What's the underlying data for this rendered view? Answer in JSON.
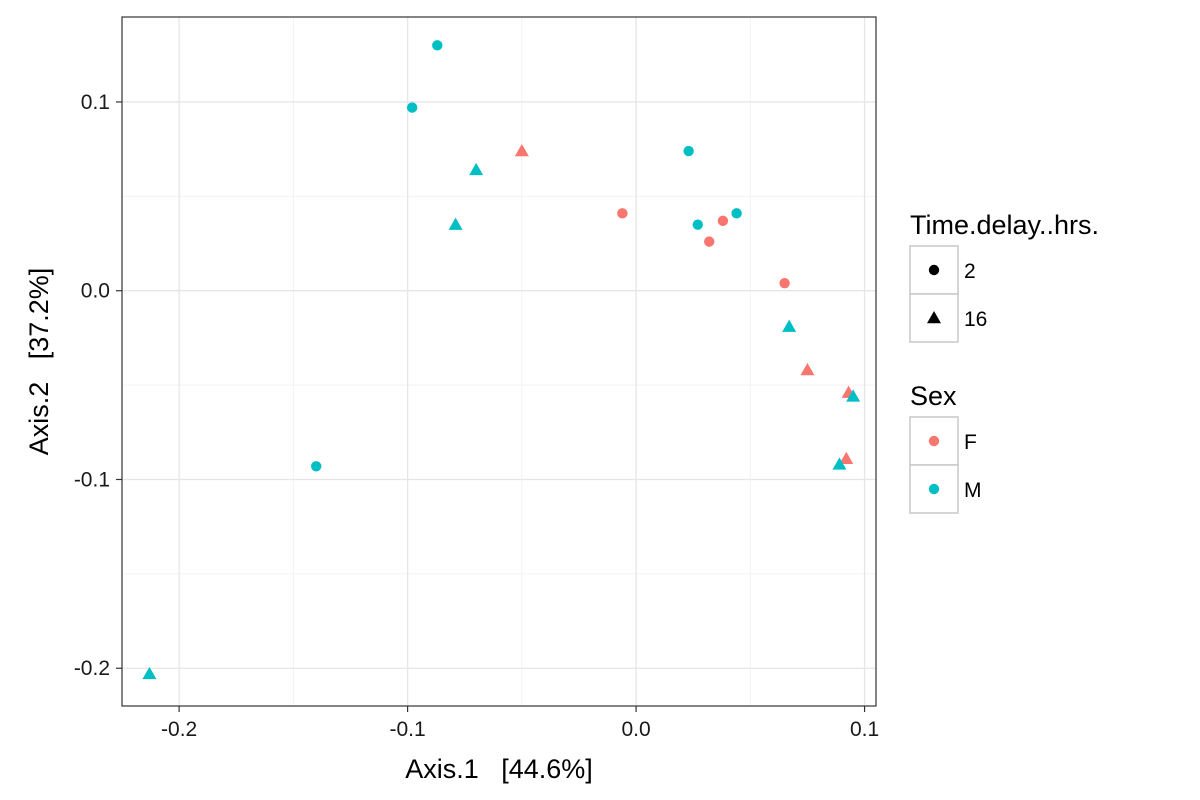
{
  "chart_data": {
    "type": "scatter",
    "xlabel": "Axis.1   [44.6%]",
    "ylabel": "Axis.2   [37.2%]",
    "xlim": [
      -0.225,
      0.105
    ],
    "ylim": [
      -0.22,
      0.145
    ],
    "x_ticks": [
      -0.2,
      -0.1,
      0.0,
      0.1
    ],
    "x_tick_labels": [
      "-0.2",
      "-0.1",
      "0.0",
      "0.1"
    ],
    "y_ticks": [
      -0.2,
      -0.1,
      0.0,
      0.1
    ],
    "y_tick_labels": [
      "-0.2",
      "-0.1",
      "0.0",
      "0.1"
    ],
    "grid": true,
    "legend_position": "right",
    "shape_legend": {
      "title": "Time.delay..hrs.",
      "entries": [
        {
          "label": "2",
          "shape": "circle"
        },
        {
          "label": "16",
          "shape": "triangle"
        }
      ]
    },
    "color_legend": {
      "title": "Sex",
      "entries": [
        {
          "label": "F",
          "color": "#F8766D"
        },
        {
          "label": "M",
          "color": "#00BFC4"
        }
      ]
    },
    "points": [
      {
        "x": -0.087,
        "y": 0.13,
        "sex": "M",
        "time": "2"
      },
      {
        "x": -0.098,
        "y": 0.097,
        "sex": "M",
        "time": "2"
      },
      {
        "x": -0.05,
        "y": 0.074,
        "sex": "F",
        "time": "16"
      },
      {
        "x": -0.07,
        "y": 0.064,
        "sex": "M",
        "time": "16"
      },
      {
        "x": -0.079,
        "y": 0.035,
        "sex": "M",
        "time": "16"
      },
      {
        "x": 0.023,
        "y": 0.074,
        "sex": "M",
        "time": "2"
      },
      {
        "x": -0.006,
        "y": 0.041,
        "sex": "F",
        "time": "2"
      },
      {
        "x": 0.044,
        "y": 0.041,
        "sex": "M",
        "time": "2"
      },
      {
        "x": 0.038,
        "y": 0.037,
        "sex": "F",
        "time": "2"
      },
      {
        "x": 0.027,
        "y": 0.035,
        "sex": "M",
        "time": "2"
      },
      {
        "x": 0.032,
        "y": 0.026,
        "sex": "F",
        "time": "2"
      },
      {
        "x": 0.065,
        "y": 0.004,
        "sex": "F",
        "time": "2"
      },
      {
        "x": 0.067,
        "y": -0.019,
        "sex": "M",
        "time": "16"
      },
      {
        "x": 0.075,
        "y": -0.042,
        "sex": "F",
        "time": "16"
      },
      {
        "x": 0.093,
        "y": -0.054,
        "sex": "F",
        "time": "16"
      },
      {
        "x": 0.095,
        "y": -0.056,
        "sex": "M",
        "time": "16"
      },
      {
        "x": 0.092,
        "y": -0.089,
        "sex": "F",
        "time": "16"
      },
      {
        "x": 0.089,
        "y": -0.092,
        "sex": "M",
        "time": "16"
      },
      {
        "x": -0.14,
        "y": -0.093,
        "sex": "M",
        "time": "2"
      },
      {
        "x": -0.213,
        "y": -0.203,
        "sex": "M",
        "time": "16"
      }
    ]
  }
}
